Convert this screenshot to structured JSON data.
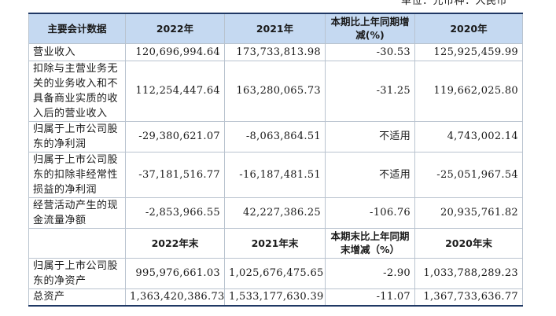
{
  "unit_label": "单位：元币种：人民币",
  "header1": [
    "主要会计数据",
    "2022年",
    "2021年",
    "本期比上年同期增减(%)",
    "2020年"
  ],
  "rows1": [
    {
      "label": "营业收入",
      "v2022": "120,696,994.64",
      "v2021": "173,733,813.98",
      "change": "-30.53",
      "v2020": "125,925,459.99"
    },
    {
      "label": "扣除与主营业务无关的业务收入和不具备商业实质的收入后的营业收入",
      "v2022": "112,254,447.64",
      "v2021": "163,280,065.73",
      "change": "-31.25",
      "v2020": "119,662,025.80"
    },
    {
      "label": "归属于上市公司股东的净利润",
      "v2022": "-29,380,621.07",
      "v2021": "-8,063,864.51",
      "change": "不适用",
      "v2020": "4,743,002.14"
    },
    {
      "label": "归属于上市公司股东的扣除非经常性损益的净利润",
      "v2022": "-37,181,516.77",
      "v2021": "-16,187,481.51",
      "change": "不适用",
      "v2020": "-25,051,967.54"
    },
    {
      "label": "经营活动产生的现金流量净额",
      "v2022": "-2,853,966.55",
      "v2021": "42,227,386.25",
      "change": "-106.76",
      "v2020": "20,935,761.82"
    }
  ],
  "header2": [
    "",
    "2022年末",
    "2021年末",
    "本期末比上年同期末增减（%）",
    "2020年末"
  ],
  "rows2": [
    {
      "label": "归属于上市公司股东的净资产",
      "v2022": "995,976,661.03",
      "v2021": "1,025,676,475.65",
      "change": "-2.90",
      "v2020": "1,033,788,289.23"
    },
    {
      "label": "总资产",
      "v2022": "1,363,420,386.73",
      "v2021": "1,533,177,630.39",
      "change": "-11.07",
      "v2020": "1,367,733,636.77"
    }
  ]
}
